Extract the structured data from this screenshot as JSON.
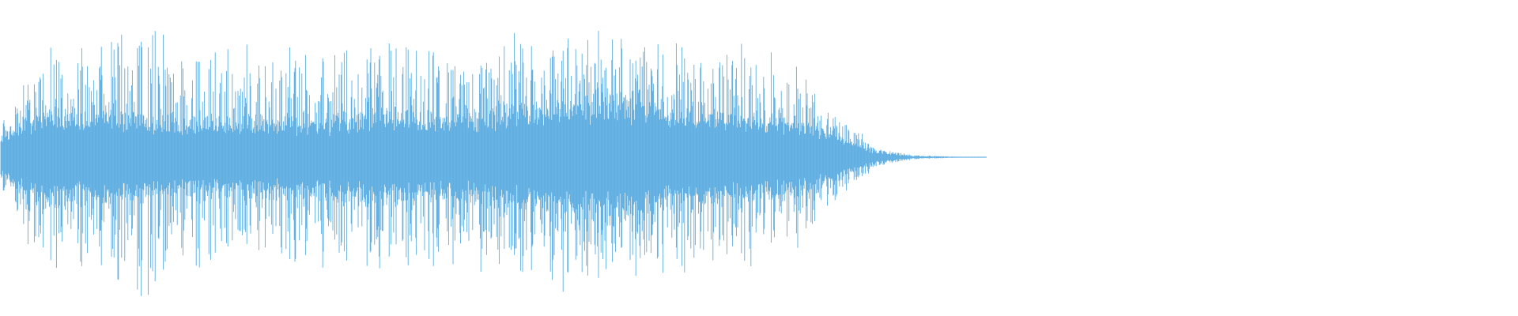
{
  "chart_data": {
    "type": "waveform",
    "title": "",
    "xlabel": "",
    "ylabel": "",
    "ylim": [
      -1,
      1
    ],
    "grid": false,
    "legend": "none",
    "color": "#5dade2",
    "envelope_points": 40,
    "peak_envelope": [
      0.25,
      0.7,
      0.85,
      1.0,
      0.95,
      0.85,
      0.8,
      0.8,
      0.8,
      0.75,
      0.8,
      0.75,
      0.8,
      0.8,
      0.85,
      0.95,
      0.9,
      0.9,
      0.85,
      0.8,
      0.75,
      0.65,
      0.35,
      0.08,
      0.02,
      0.005,
      0,
      0,
      0,
      0,
      0,
      0,
      0,
      0,
      0,
      0,
      0,
      0,
      0,
      0
    ],
    "core_envelope": [
      0.15,
      0.35,
      0.35,
      0.35,
      0.3,
      0.3,
      0.3,
      0.3,
      0.3,
      0.3,
      0.35,
      0.32,
      0.32,
      0.35,
      0.4,
      0.45,
      0.45,
      0.45,
      0.35,
      0.35,
      0.3,
      0.3,
      0.2,
      0.05,
      0.01,
      0.005,
      0,
      0,
      0,
      0,
      0,
      0,
      0,
      0,
      0,
      0,
      0,
      0,
      0,
      0
    ]
  }
}
